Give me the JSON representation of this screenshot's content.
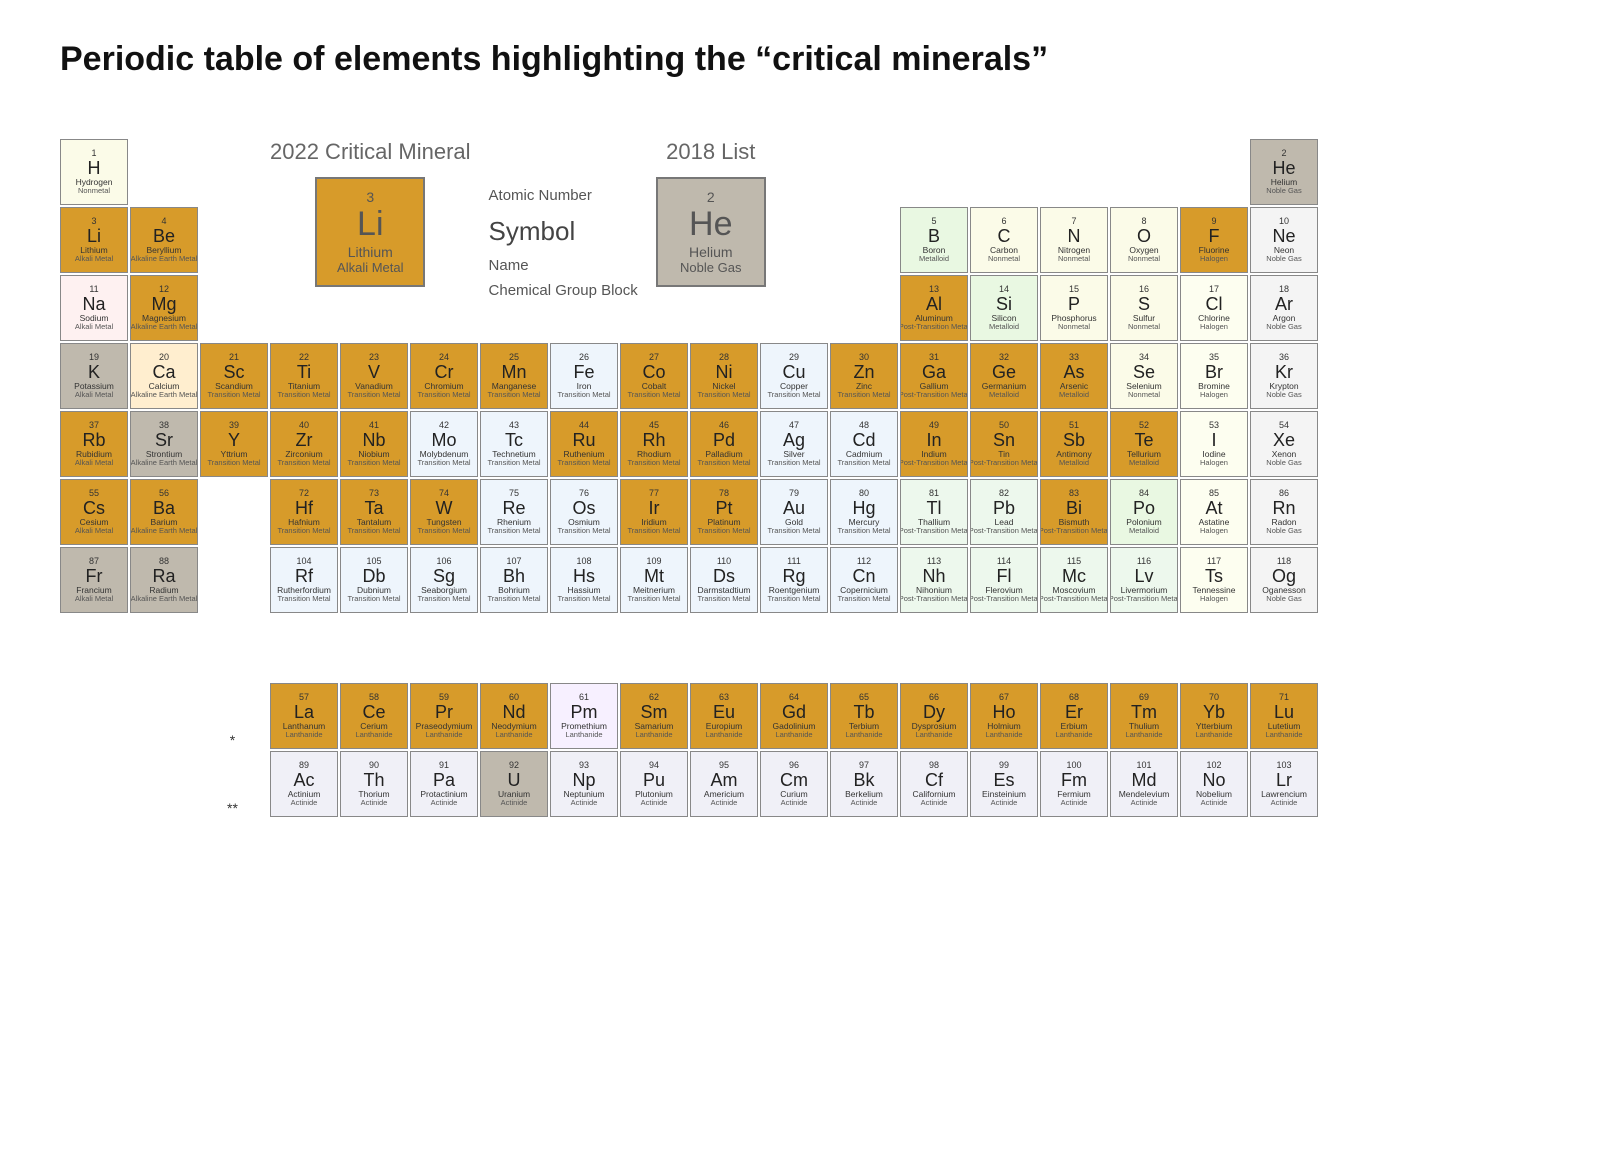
{
  "title": "Periodic table of elements highlighting the “critical minerals”",
  "legend": {
    "caption_2022": "2022 Critical Mineral",
    "caption_2018": "2018 List",
    "labels": {
      "atomic_number": "Atomic Number",
      "symbol": "Symbol",
      "name": "Name",
      "group": "Chemical Group Block"
    },
    "sample_2022": {
      "num": "3",
      "sym": "Li",
      "name": "Lithium",
      "grp": "Alkali Metal"
    },
    "sample_2018": {
      "num": "2",
      "sym": "He",
      "name": "Helium",
      "grp": "Noble Gas"
    }
  },
  "colors": {
    "2022": "#d79b2a",
    "2018": "#bfb9ad",
    "alkali": "#fef1f1",
    "alkaline_earth": "#ffeecf",
    "transition": "#eef5fc",
    "post_transition": "#edf8ed",
    "metalloid": "#e9f8e2",
    "nonmetal": "#fbfbe8",
    "halogen": "#fdfef0",
    "noble": "#f4f4f4",
    "lanthanide": "#f7f0ff",
    "actinide": "#f0f0f7",
    "border": "#888888",
    "text": "#222222"
  },
  "group_bg_map": {
    "Alkali Metal": "alkali",
    "Alkaline Earth Metal": "alkaline_earth",
    "Transition Metal": "transition",
    "Post-Transition Metal": "post_transition",
    "Metalloid": "metalloid",
    "Nonmetal": "nonmetal",
    "Halogen": "halogen",
    "Noble Gas": "noble",
    "Lanthanide": "lanthanide",
    "Actinide": "actinide"
  },
  "critical_2022": [
    3,
    4,
    9,
    12,
    13,
    21,
    22,
    23,
    24,
    25,
    27,
    28,
    30,
    31,
    32,
    33,
    37,
    39,
    40,
    41,
    44,
    45,
    46,
    49,
    50,
    51,
    52,
    55,
    56,
    72,
    73,
    74,
    77,
    78,
    83,
    57,
    58,
    59,
    60,
    62,
    63,
    64,
    65,
    66,
    67,
    68,
    69,
    70,
    71
  ],
  "critical_2018": [
    2,
    19,
    38,
    87,
    88,
    92
  ],
  "elements": [
    {
      "n": 1,
      "s": "H",
      "name": "Hydrogen",
      "g": "Nonmetal",
      "r": 1,
      "c": 1
    },
    {
      "n": 2,
      "s": "He",
      "name": "Helium",
      "g": "Noble Gas",
      "r": 1,
      "c": 18
    },
    {
      "n": 3,
      "s": "Li",
      "name": "Lithium",
      "g": "Alkali Metal",
      "r": 2,
      "c": 1
    },
    {
      "n": 4,
      "s": "Be",
      "name": "Beryllium",
      "g": "Alkaline Earth Metal",
      "r": 2,
      "c": 2
    },
    {
      "n": 5,
      "s": "B",
      "name": "Boron",
      "g": "Metalloid",
      "r": 2,
      "c": 13
    },
    {
      "n": 6,
      "s": "C",
      "name": "Carbon",
      "g": "Nonmetal",
      "r": 2,
      "c": 14
    },
    {
      "n": 7,
      "s": "N",
      "name": "Nitrogen",
      "g": "Nonmetal",
      "r": 2,
      "c": 15
    },
    {
      "n": 8,
      "s": "O",
      "name": "Oxygen",
      "g": "Nonmetal",
      "r": 2,
      "c": 16
    },
    {
      "n": 9,
      "s": "F",
      "name": "Fluorine",
      "g": "Halogen",
      "r": 2,
      "c": 17
    },
    {
      "n": 10,
      "s": "Ne",
      "name": "Neon",
      "g": "Noble Gas",
      "r": 2,
      "c": 18
    },
    {
      "n": 11,
      "s": "Na",
      "name": "Sodium",
      "g": "Alkali Metal",
      "r": 3,
      "c": 1
    },
    {
      "n": 12,
      "s": "Mg",
      "name": "Magnesium",
      "g": "Alkaline Earth Metal",
      "r": 3,
      "c": 2
    },
    {
      "n": 13,
      "s": "Al",
      "name": "Aluminum",
      "g": "Post-Transition Metal",
      "r": 3,
      "c": 13
    },
    {
      "n": 14,
      "s": "Si",
      "name": "Silicon",
      "g": "Metalloid",
      "r": 3,
      "c": 14
    },
    {
      "n": 15,
      "s": "P",
      "name": "Phosphorus",
      "g": "Nonmetal",
      "r": 3,
      "c": 15
    },
    {
      "n": 16,
      "s": "S",
      "name": "Sulfur",
      "g": "Nonmetal",
      "r": 3,
      "c": 16
    },
    {
      "n": 17,
      "s": "Cl",
      "name": "Chlorine",
      "g": "Halogen",
      "r": 3,
      "c": 17
    },
    {
      "n": 18,
      "s": "Ar",
      "name": "Argon",
      "g": "Noble Gas",
      "r": 3,
      "c": 18
    },
    {
      "n": 19,
      "s": "K",
      "name": "Potassium",
      "g": "Alkali Metal",
      "r": 4,
      "c": 1
    },
    {
      "n": 20,
      "s": "Ca",
      "name": "Calcium",
      "g": "Alkaline Earth Metal",
      "r": 4,
      "c": 2
    },
    {
      "n": 21,
      "s": "Sc",
      "name": "Scandium",
      "g": "Transition Metal",
      "r": 4,
      "c": 3
    },
    {
      "n": 22,
      "s": "Ti",
      "name": "Titanium",
      "g": "Transition Metal",
      "r": 4,
      "c": 4
    },
    {
      "n": 23,
      "s": "V",
      "name": "Vanadium",
      "g": "Transition Metal",
      "r": 4,
      "c": 5
    },
    {
      "n": 24,
      "s": "Cr",
      "name": "Chromium",
      "g": "Transition Metal",
      "r": 4,
      "c": 6
    },
    {
      "n": 25,
      "s": "Mn",
      "name": "Manganese",
      "g": "Transition Metal",
      "r": 4,
      "c": 7
    },
    {
      "n": 26,
      "s": "Fe",
      "name": "Iron",
      "g": "Transition Metal",
      "r": 4,
      "c": 8
    },
    {
      "n": 27,
      "s": "Co",
      "name": "Cobalt",
      "g": "Transition Metal",
      "r": 4,
      "c": 9
    },
    {
      "n": 28,
      "s": "Ni",
      "name": "Nickel",
      "g": "Transition Metal",
      "r": 4,
      "c": 10
    },
    {
      "n": 29,
      "s": "Cu",
      "name": "Copper",
      "g": "Transition Metal",
      "r": 4,
      "c": 11
    },
    {
      "n": 30,
      "s": "Zn",
      "name": "Zinc",
      "g": "Transition Metal",
      "r": 4,
      "c": 12
    },
    {
      "n": 31,
      "s": "Ga",
      "name": "Gallium",
      "g": "Post-Transition Metal",
      "r": 4,
      "c": 13
    },
    {
      "n": 32,
      "s": "Ge",
      "name": "Germanium",
      "g": "Metalloid",
      "r": 4,
      "c": 14
    },
    {
      "n": 33,
      "s": "As",
      "name": "Arsenic",
      "g": "Metalloid",
      "r": 4,
      "c": 15
    },
    {
      "n": 34,
      "s": "Se",
      "name": "Selenium",
      "g": "Nonmetal",
      "r": 4,
      "c": 16
    },
    {
      "n": 35,
      "s": "Br",
      "name": "Bromine",
      "g": "Halogen",
      "r": 4,
      "c": 17
    },
    {
      "n": 36,
      "s": "Kr",
      "name": "Krypton",
      "g": "Noble Gas",
      "r": 4,
      "c": 18
    },
    {
      "n": 37,
      "s": "Rb",
      "name": "Rubidium",
      "g": "Alkali Metal",
      "r": 5,
      "c": 1
    },
    {
      "n": 38,
      "s": "Sr",
      "name": "Strontium",
      "g": "Alkaline Earth Metal",
      "r": 5,
      "c": 2
    },
    {
      "n": 39,
      "s": "Y",
      "name": "Yttrium",
      "g": "Transition Metal",
      "r": 5,
      "c": 3
    },
    {
      "n": 40,
      "s": "Zr",
      "name": "Zirconium",
      "g": "Transition Metal",
      "r": 5,
      "c": 4
    },
    {
      "n": 41,
      "s": "Nb",
      "name": "Niobium",
      "g": "Transition Metal",
      "r": 5,
      "c": 5
    },
    {
      "n": 42,
      "s": "Mo",
      "name": "Molybdenum",
      "g": "Transition Metal",
      "r": 5,
      "c": 6
    },
    {
      "n": 43,
      "s": "Tc",
      "name": "Technetium",
      "g": "Transition Metal",
      "r": 5,
      "c": 7
    },
    {
      "n": 44,
      "s": "Ru",
      "name": "Ruthenium",
      "g": "Transition Metal",
      "r": 5,
      "c": 8
    },
    {
      "n": 45,
      "s": "Rh",
      "name": "Rhodium",
      "g": "Transition Metal",
      "r": 5,
      "c": 9
    },
    {
      "n": 46,
      "s": "Pd",
      "name": "Palladium",
      "g": "Transition Metal",
      "r": 5,
      "c": 10
    },
    {
      "n": 47,
      "s": "Ag",
      "name": "Silver",
      "g": "Transition Metal",
      "r": 5,
      "c": 11
    },
    {
      "n": 48,
      "s": "Cd",
      "name": "Cadmium",
      "g": "Transition Metal",
      "r": 5,
      "c": 12
    },
    {
      "n": 49,
      "s": "In",
      "name": "Indium",
      "g": "Post-Transition Metal",
      "r": 5,
      "c": 13
    },
    {
      "n": 50,
      "s": "Sn",
      "name": "Tin",
      "g": "Post-Transition Metal",
      "r": 5,
      "c": 14
    },
    {
      "n": 51,
      "s": "Sb",
      "name": "Antimony",
      "g": "Metalloid",
      "r": 5,
      "c": 15
    },
    {
      "n": 52,
      "s": "Te",
      "name": "Tellurium",
      "g": "Metalloid",
      "r": 5,
      "c": 16
    },
    {
      "n": 53,
      "s": "I",
      "name": "Iodine",
      "g": "Halogen",
      "r": 5,
      "c": 17
    },
    {
      "n": 54,
      "s": "Xe",
      "name": "Xenon",
      "g": "Noble Gas",
      "r": 5,
      "c": 18
    },
    {
      "n": 55,
      "s": "Cs",
      "name": "Cesium",
      "g": "Alkali Metal",
      "r": 6,
      "c": 1
    },
    {
      "n": 56,
      "s": "Ba",
      "name": "Barium",
      "g": "Alkaline Earth Metal",
      "r": 6,
      "c": 2
    },
    {
      "n": 72,
      "s": "Hf",
      "name": "Hafnium",
      "g": "Transition Metal",
      "r": 6,
      "c": 4
    },
    {
      "n": 73,
      "s": "Ta",
      "name": "Tantalum",
      "g": "Transition Metal",
      "r": 6,
      "c": 5
    },
    {
      "n": 74,
      "s": "W",
      "name": "Tungsten",
      "g": "Transition Metal",
      "r": 6,
      "c": 6
    },
    {
      "n": 75,
      "s": "Re",
      "name": "Rhenium",
      "g": "Transition Metal",
      "r": 6,
      "c": 7
    },
    {
      "n": 76,
      "s": "Os",
      "name": "Osmium",
      "g": "Transition Metal",
      "r": 6,
      "c": 8
    },
    {
      "n": 77,
      "s": "Ir",
      "name": "Iridium",
      "g": "Transition Metal",
      "r": 6,
      "c": 9
    },
    {
      "n": 78,
      "s": "Pt",
      "name": "Platinum",
      "g": "Transition Metal",
      "r": 6,
      "c": 10
    },
    {
      "n": 79,
      "s": "Au",
      "name": "Gold",
      "g": "Transition Metal",
      "r": 6,
      "c": 11
    },
    {
      "n": 80,
      "s": "Hg",
      "name": "Mercury",
      "g": "Transition Metal",
      "r": 6,
      "c": 12
    },
    {
      "n": 81,
      "s": "Tl",
      "name": "Thallium",
      "g": "Post-Transition Metal",
      "r": 6,
      "c": 13
    },
    {
      "n": 82,
      "s": "Pb",
      "name": "Lead",
      "g": "Post-Transition Metal",
      "r": 6,
      "c": 14
    },
    {
      "n": 83,
      "s": "Bi",
      "name": "Bismuth",
      "g": "Post-Transition Metal",
      "r": 6,
      "c": 15
    },
    {
      "n": 84,
      "s": "Po",
      "name": "Polonium",
      "g": "Metalloid",
      "r": 6,
      "c": 16
    },
    {
      "n": 85,
      "s": "At",
      "name": "Astatine",
      "g": "Halogen",
      "r": 6,
      "c": 17
    },
    {
      "n": 86,
      "s": "Rn",
      "name": "Radon",
      "g": "Noble Gas",
      "r": 6,
      "c": 18
    },
    {
      "n": 87,
      "s": "Fr",
      "name": "Francium",
      "g": "Alkali Metal",
      "r": 7,
      "c": 1
    },
    {
      "n": 88,
      "s": "Ra",
      "name": "Radium",
      "g": "Alkaline Earth Metal",
      "r": 7,
      "c": 2
    },
    {
      "n": 104,
      "s": "Rf",
      "name": "Rutherfordium",
      "g": "Transition Metal",
      "r": 7,
      "c": 4
    },
    {
      "n": 105,
      "s": "Db",
      "name": "Dubnium",
      "g": "Transition Metal",
      "r": 7,
      "c": 5
    },
    {
      "n": 106,
      "s": "Sg",
      "name": "Seaborgium",
      "g": "Transition Metal",
      "r": 7,
      "c": 6
    },
    {
      "n": 107,
      "s": "Bh",
      "name": "Bohrium",
      "g": "Transition Metal",
      "r": 7,
      "c": 7
    },
    {
      "n": 108,
      "s": "Hs",
      "name": "Hassium",
      "g": "Transition Metal",
      "r": 7,
      "c": 8
    },
    {
      "n": 109,
      "s": "Mt",
      "name": "Meitnerium",
      "g": "Transition Metal",
      "r": 7,
      "c": 9
    },
    {
      "n": 110,
      "s": "Ds",
      "name": "Darmstadtium",
      "g": "Transition Metal",
      "r": 7,
      "c": 10
    },
    {
      "n": 111,
      "s": "Rg",
      "name": "Roentgenium",
      "g": "Transition Metal",
      "r": 7,
      "c": 11
    },
    {
      "n": 112,
      "s": "Cn",
      "name": "Copernicium",
      "g": "Transition Metal",
      "r": 7,
      "c": 12
    },
    {
      "n": 113,
      "s": "Nh",
      "name": "Nihonium",
      "g": "Post-Transition Metal",
      "r": 7,
      "c": 13
    },
    {
      "n": 114,
      "s": "Fl",
      "name": "Flerovium",
      "g": "Post-Transition Metal",
      "r": 7,
      "c": 14
    },
    {
      "n": 115,
      "s": "Mc",
      "name": "Moscovium",
      "g": "Post-Transition Metal",
      "r": 7,
      "c": 15
    },
    {
      "n": 116,
      "s": "Lv",
      "name": "Livermorium",
      "g": "Post-Transition Metal",
      "r": 7,
      "c": 16
    },
    {
      "n": 117,
      "s": "Ts",
      "name": "Tennessine",
      "g": "Halogen",
      "r": 7,
      "c": 17
    },
    {
      "n": 118,
      "s": "Og",
      "name": "Oganesson",
      "g": "Noble Gas",
      "r": 7,
      "c": 18
    },
    {
      "n": 57,
      "s": "La",
      "name": "Lanthanum",
      "g": "Lanthanide",
      "r": 9,
      "c": 4
    },
    {
      "n": 58,
      "s": "Ce",
      "name": "Cerium",
      "g": "Lanthanide",
      "r": 9,
      "c": 5
    },
    {
      "n": 59,
      "s": "Pr",
      "name": "Praseodymium",
      "g": "Lanthanide",
      "r": 9,
      "c": 6
    },
    {
      "n": 60,
      "s": "Nd",
      "name": "Neodymium",
      "g": "Lanthanide",
      "r": 9,
      "c": 7
    },
    {
      "n": 61,
      "s": "Pm",
      "name": "Promethium",
      "g": "Lanthanide",
      "r": 9,
      "c": 8
    },
    {
      "n": 62,
      "s": "Sm",
      "name": "Samarium",
      "g": "Lanthanide",
      "r": 9,
      "c": 9
    },
    {
      "n": 63,
      "s": "Eu",
      "name": "Europium",
      "g": "Lanthanide",
      "r": 9,
      "c": 10
    },
    {
      "n": 64,
      "s": "Gd",
      "name": "Gadolinium",
      "g": "Lanthanide",
      "r": 9,
      "c": 11
    },
    {
      "n": 65,
      "s": "Tb",
      "name": "Terbium",
      "g": "Lanthanide",
      "r": 9,
      "c": 12
    },
    {
      "n": 66,
      "s": "Dy",
      "name": "Dysprosium",
      "g": "Lanthanide",
      "r": 9,
      "c": 13
    },
    {
      "n": 67,
      "s": "Ho",
      "name": "Holmium",
      "g": "Lanthanide",
      "r": 9,
      "c": 14
    },
    {
      "n": 68,
      "s": "Er",
      "name": "Erbium",
      "g": "Lanthanide",
      "r": 9,
      "c": 15
    },
    {
      "n": 69,
      "s": "Tm",
      "name": "Thulium",
      "g": "Lanthanide",
      "r": 9,
      "c": 16
    },
    {
      "n": 70,
      "s": "Yb",
      "name": "Ytterbium",
      "g": "Lanthanide",
      "r": 9,
      "c": 17
    },
    {
      "n": 71,
      "s": "Lu",
      "name": "Lutetium",
      "g": "Lanthanide",
      "r": 9,
      "c": 18
    },
    {
      "n": 89,
      "s": "Ac",
      "name": "Actinium",
      "g": "Actinide",
      "r": 10,
      "c": 4
    },
    {
      "n": 90,
      "s": "Th",
      "name": "Thorium",
      "g": "Actinide",
      "r": 10,
      "c": 5
    },
    {
      "n": 91,
      "s": "Pa",
      "name": "Protactinium",
      "g": "Actinide",
      "r": 10,
      "c": 6
    },
    {
      "n": 92,
      "s": "U",
      "name": "Uranium",
      "g": "Actinide",
      "r": 10,
      "c": 7
    },
    {
      "n": 93,
      "s": "Np",
      "name": "Neptunium",
      "g": "Actinide",
      "r": 10,
      "c": 8
    },
    {
      "n": 94,
      "s": "Pu",
      "name": "Plutonium",
      "g": "Actinide",
      "r": 10,
      "c": 9
    },
    {
      "n": 95,
      "s": "Am",
      "name": "Americium",
      "g": "Actinide",
      "r": 10,
      "c": 10
    },
    {
      "n": 96,
      "s": "Cm",
      "name": "Curium",
      "g": "Actinide",
      "r": 10,
      "c": 11
    },
    {
      "n": 97,
      "s": "Bk",
      "name": "Berkelium",
      "g": "Actinide",
      "r": 10,
      "c": 12
    },
    {
      "n": 98,
      "s": "Cf",
      "name": "Californium",
      "g": "Actinide",
      "r": 10,
      "c": 13
    },
    {
      "n": 99,
      "s": "Es",
      "name": "Einsteinium",
      "g": "Actinide",
      "r": 10,
      "c": 14
    },
    {
      "n": 100,
      "s": "Fm",
      "name": "Fermium",
      "g": "Actinide",
      "r": 10,
      "c": 15
    },
    {
      "n": 101,
      "s": "Md",
      "name": "Mendelevium",
      "g": "Actinide",
      "r": 10,
      "c": 16
    },
    {
      "n": 102,
      "s": "No",
      "name": "Nobelium",
      "g": "Actinide",
      "r": 10,
      "c": 17
    },
    {
      "n": 103,
      "s": "Lr",
      "name": "Lawrencium",
      "g": "Actinide",
      "r": 10,
      "c": 18
    }
  ],
  "asterisks": {
    "lanth": "*",
    "act": "**"
  }
}
